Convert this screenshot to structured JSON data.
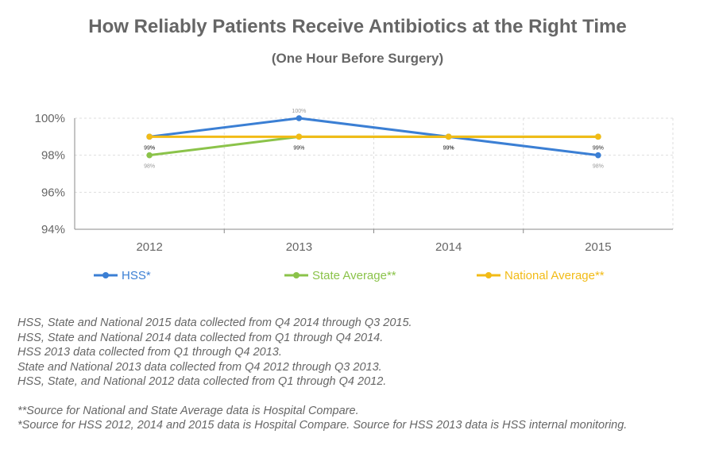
{
  "chart_data": {
    "type": "line",
    "title": "How Reliably Patients Receive Antibiotics at the Right Time",
    "subtitle": "(One Hour Before Surgery)",
    "categories": [
      "2012",
      "2013",
      "2014",
      "2015"
    ],
    "ylim": [
      94,
      100
    ],
    "yticks": [
      94,
      96,
      98,
      100
    ],
    "ytick_labels": [
      "94%",
      "96%",
      "98%",
      "100%"
    ],
    "grid": true,
    "legend_position": "bottom",
    "series": [
      {
        "name": "HSS*",
        "color": "#3b7fd4",
        "values": [
          99,
          100,
          99,
          98
        ],
        "labels": [
          "99%",
          "100%",
          "99%",
          "98%"
        ]
      },
      {
        "name": "State Average**",
        "color": "#8bc34a",
        "values": [
          98,
          99,
          99,
          99
        ],
        "labels": [
          "98%",
          "99%",
          "99%",
          "99%"
        ]
      },
      {
        "name": "National Average**",
        "color": "#f2bb16",
        "values": [
          99,
          99,
          99,
          99
        ],
        "labels": [
          "99%",
          "99%",
          "99%",
          "99%"
        ]
      }
    ]
  },
  "notes": [
    "HSS, State and National 2015 data collected from Q4 2014 through Q3 2015.",
    "HSS, State and National 2014 data collected from Q1 through Q4 2014.",
    "HSS 2013 data collected from Q1 through Q4 2013.",
    "State and National 2013 data collected from Q4 2012 through Q3 2013.",
    "HSS, State, and National 2012 data collected from Q1 through Q4 2012."
  ],
  "sources": [
    "**Source for National and State Average data is Hospital Compare.",
    "*Source for HSS 2012, 2014 and 2015 data is Hospital Compare. Source for HSS 2013 data is HSS internal monitoring."
  ]
}
